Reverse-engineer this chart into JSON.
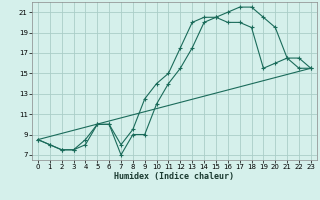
{
  "xlabel": "Humidex (Indice chaleur)",
  "bg_color": "#d5f0eb",
  "grid_color": "#aacec8",
  "line_color": "#1a6b5a",
  "xlim": [
    -0.5,
    23.5
  ],
  "ylim": [
    6.5,
    22
  ],
  "yticks": [
    7,
    9,
    11,
    13,
    15,
    17,
    19,
    21
  ],
  "xticks": [
    0,
    1,
    2,
    3,
    4,
    5,
    6,
    7,
    8,
    9,
    10,
    11,
    12,
    13,
    14,
    15,
    16,
    17,
    18,
    19,
    20,
    21,
    22,
    23
  ],
  "line1_x": [
    0,
    1,
    2,
    3,
    4,
    5,
    6,
    7,
    8,
    9,
    10,
    11,
    12,
    13,
    14,
    15,
    16,
    17,
    18,
    19,
    20,
    21,
    22,
    23
  ],
  "line1_y": [
    8.5,
    8.0,
    7.5,
    7.5,
    8.0,
    10.0,
    10.0,
    7.0,
    9.0,
    9.0,
    12.0,
    14.0,
    15.5,
    17.5,
    20.0,
    20.5,
    21.0,
    21.5,
    21.5,
    20.5,
    19.5,
    16.5,
    15.5,
    15.5
  ],
  "line2_x": [
    0,
    1,
    2,
    3,
    4,
    5,
    6,
    7,
    8,
    9,
    10,
    11,
    12,
    13,
    14,
    15,
    16,
    17,
    18,
    19,
    20,
    21,
    22,
    23
  ],
  "line2_y": [
    8.5,
    8.0,
    7.5,
    7.5,
    8.5,
    10.0,
    10.0,
    8.0,
    9.5,
    12.5,
    14.0,
    15.0,
    17.5,
    20.0,
    20.5,
    20.5,
    20.0,
    20.0,
    19.5,
    15.5,
    16.0,
    16.5,
    16.5,
    15.5
  ],
  "line3_x": [
    0,
    23
  ],
  "line3_y": [
    8.5,
    15.5
  ]
}
